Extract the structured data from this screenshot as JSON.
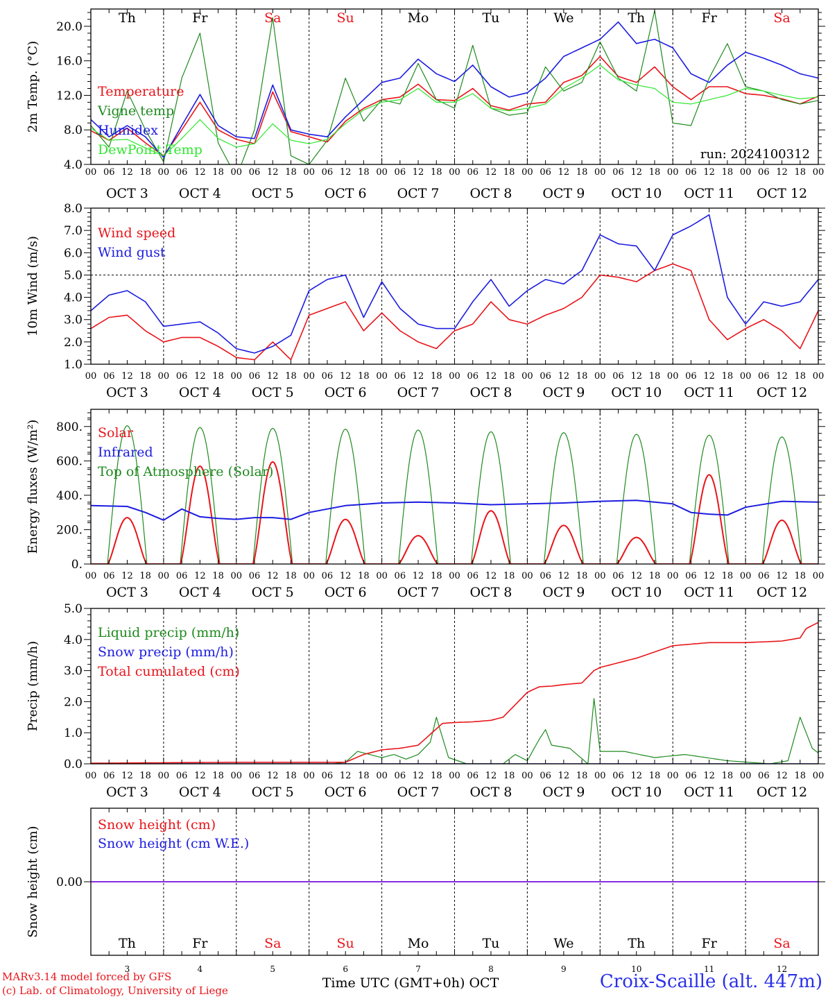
{
  "meta": {
    "credit_line1": "MARv3.14 model forced by GFS",
    "credit_line2": "(c) Lab. of Climatology, University of Liege",
    "station": "Croix-Scaille (alt. 447m)",
    "run_label": "run: 2024100312",
    "x_axis_title": "Time UTC (GMT+0h) OCT",
    "hour_ticks": [
      "00",
      "06",
      "12",
      "18"
    ],
    "last_hour_tick": "00",
    "date_labels": [
      "OCT  3",
      "OCT  4",
      "OCT  5",
      "OCT  6",
      "OCT  7",
      "OCT  8",
      "OCT  9",
      "OCT 10",
      "OCT 11",
      "OCT 12"
    ],
    "day_numbers": [
      "3",
      "4",
      "5",
      "6",
      "7",
      "8",
      "9",
      "10",
      "11",
      "12"
    ],
    "weekdays": [
      "Th",
      "Fr",
      "Sa",
      "Su",
      "Mo",
      "Tu",
      "We",
      "Th",
      "Fr",
      "Sa"
    ],
    "weekend_days": [
      2,
      3,
      9
    ],
    "colors": {
      "red": "#e8141a",
      "blue": "#1c1ce0",
      "green": "#1e8a1e",
      "lightgreen": "#2ee82e",
      "purple": "#8a2be2",
      "axis": "#000000"
    }
  },
  "chart_data": [
    {
      "type": "line",
      "id": "temperature",
      "ylabel": "2m Temp. (°C)",
      "ylim": [
        4,
        22
      ],
      "yticks": [
        "4.0",
        "8.0",
        "12.0",
        "16.0",
        "20.0"
      ],
      "ytick_values": [
        4,
        8,
        12,
        16,
        20
      ],
      "weekday_header": true,
      "run_label": true,
      "grid": "vertical dashed at day boundaries",
      "legend_placement": "left",
      "x_hours": [
        0,
        6,
        12,
        18,
        24,
        30,
        36,
        42,
        48,
        54,
        60,
        66,
        72,
        78,
        84,
        90,
        96,
        102,
        108,
        114,
        120,
        126,
        132,
        138,
        144,
        150,
        156,
        162,
        168,
        174,
        180,
        186,
        192,
        198,
        204,
        210,
        216,
        222,
        228,
        234,
        240
      ],
      "series": [
        {
          "name": "Temperature",
          "color": "#e8141a",
          "values": [
            7.9,
            6.8,
            8.2,
            6.5,
            5.0,
            8.0,
            11.2,
            8.0,
            6.9,
            6.4,
            12.4,
            7.8,
            7.2,
            6.6,
            9.0,
            10.5,
            11.5,
            11.8,
            13.3,
            11.5,
            11.4,
            12.8,
            10.8,
            10.3,
            11.0,
            11.2,
            13.5,
            14.3,
            16.5,
            14.2,
            13.5,
            15.3,
            13.0,
            11.5,
            13.0,
            13.0,
            12.2,
            12.0,
            11.6,
            11.0,
            11.9
          ]
        },
        {
          "name": "Vigne temp",
          "color": "#1e8a1e",
          "values": [
            8.5,
            6.0,
            12.5,
            8.0,
            4.3,
            14.0,
            19.2,
            6.5,
            2.5,
            8.0,
            21.0,
            5.0,
            4.0,
            6.8,
            14.0,
            9.0,
            11.5,
            11.0,
            15.7,
            11.5,
            10.5,
            17.8,
            10.5,
            9.7,
            10.0,
            15.3,
            12.5,
            13.5,
            18.2,
            14.0,
            12.5,
            21.8,
            8.8,
            8.5,
            14.0,
            18.0,
            13.0,
            12.5,
            11.5,
            11.0,
            11.4
          ]
        },
        {
          "name": "Humidex",
          "color": "#1c1ce0",
          "values": [
            9.2,
            7.2,
            8.5,
            7.2,
            4.8,
            8.5,
            12.1,
            8.5,
            7.2,
            7.0,
            13.2,
            8.0,
            7.5,
            7.2,
            9.5,
            11.5,
            13.5,
            14.0,
            16.2,
            14.5,
            13.6,
            15.5,
            13.0,
            11.8,
            12.3,
            14.0,
            16.5,
            17.5,
            18.5,
            20.5,
            18.0,
            18.5,
            17.5,
            14.5,
            13.5,
            15.5,
            17.0,
            16.3,
            15.5,
            14.5,
            14.0
          ]
        },
        {
          "name": "DewPoint Temp",
          "color": "#2ee82e",
          "values": [
            8.2,
            6.8,
            6.9,
            5.9,
            5.0,
            7.0,
            9.2,
            7.0,
            6.0,
            6.4,
            8.7,
            6.8,
            6.4,
            6.9,
            8.7,
            10.3,
            11.2,
            11.5,
            12.8,
            11.2,
            11.2,
            12.2,
            10.5,
            10.2,
            10.5,
            11.0,
            12.8,
            14.0,
            15.5,
            13.8,
            13.2,
            12.8,
            11.2,
            11.0,
            11.5,
            12.0,
            12.8,
            12.5,
            12.0,
            11.6,
            11.8
          ]
        }
      ]
    },
    {
      "type": "line",
      "id": "wind",
      "ylabel": "10m Wind (m/s)",
      "ylim": [
        1,
        8
      ],
      "yticks": [
        "1.0",
        "2.0",
        "3.0",
        "4.0",
        "5.0",
        "6.0",
        "7.0",
        "8.0"
      ],
      "ytick_values": [
        1,
        2,
        3,
        4,
        5,
        6,
        7,
        8
      ],
      "reference_line": 5,
      "legend_placement": "left",
      "x_hours": [
        0,
        6,
        12,
        18,
        24,
        30,
        36,
        42,
        48,
        54,
        60,
        66,
        72,
        78,
        84,
        90,
        96,
        102,
        108,
        114,
        120,
        126,
        132,
        138,
        144,
        150,
        156,
        162,
        168,
        174,
        180,
        186,
        192,
        198,
        204,
        210,
        216,
        222,
        228,
        234,
        240
      ],
      "series": [
        {
          "name": "Wind speed",
          "color": "#e8141a",
          "values": [
            2.6,
            3.1,
            3.2,
            2.5,
            2.0,
            2.2,
            2.2,
            1.8,
            1.3,
            1.2,
            2.0,
            1.2,
            3.2,
            3.5,
            3.8,
            2.5,
            3.3,
            2.5,
            2.0,
            1.7,
            2.5,
            2.8,
            3.8,
            3.0,
            2.8,
            3.2,
            3.5,
            4.0,
            5.0,
            4.9,
            4.7,
            5.2,
            5.5,
            5.2,
            3.0,
            2.1,
            2.6,
            3.0,
            2.5,
            1.7,
            3.4
          ]
        },
        {
          "name": "Wind gust",
          "color": "#1c1ce0",
          "values": [
            3.4,
            4.1,
            4.3,
            3.8,
            2.7,
            2.8,
            2.9,
            2.4,
            1.7,
            1.5,
            1.8,
            2.3,
            4.3,
            4.8,
            5.0,
            3.1,
            4.7,
            3.5,
            2.8,
            2.6,
            2.6,
            3.8,
            4.8,
            3.6,
            4.3,
            4.8,
            4.6,
            5.2,
            6.8,
            6.4,
            6.3,
            5.2,
            6.8,
            7.2,
            7.7,
            4.0,
            2.8,
            3.8,
            3.6,
            3.8,
            4.8
          ]
        }
      ]
    },
    {
      "type": "line",
      "id": "energy",
      "ylabel": "Energy fluxes (W/m²)",
      "ylim": [
        0,
        900
      ],
      "yticks": [
        "0.",
        "200.",
        "400.",
        "600.",
        "800."
      ],
      "ytick_values": [
        0,
        200,
        400,
        600,
        800
      ],
      "legend_placement": "left",
      "daily_peaks": {
        "top_of_atmosphere": [
          805,
          795,
          790,
          785,
          780,
          770,
          765,
          755,
          750,
          740
        ],
        "solar": [
          270,
          570,
          595,
          260,
          165,
          310,
          225,
          155,
          520,
          255
        ]
      },
      "series": [
        {
          "name": "Solar",
          "color": "#e8141a"
        },
        {
          "name": "Infrared",
          "color": "#1c1ce0",
          "x_hours": [
            0,
            12,
            18,
            24,
            30,
            36,
            42,
            48,
            54,
            60,
            66,
            72,
            84,
            96,
            108,
            120,
            132,
            144,
            156,
            168,
            180,
            192,
            198,
            204,
            210,
            216,
            228,
            240
          ],
          "values": [
            340,
            335,
            300,
            255,
            320,
            275,
            265,
            260,
            270,
            270,
            260,
            300,
            340,
            355,
            360,
            355,
            345,
            350,
            355,
            365,
            370,
            350,
            300,
            290,
            285,
            330,
            365,
            360
          ]
        },
        {
          "name": "Top of Atmosphere (Solar)",
          "color": "#1e8a1e"
        }
      ]
    },
    {
      "type": "line",
      "id": "precip",
      "ylabel": "Precip (mm/h)",
      "ylim": [
        0,
        5
      ],
      "yticks": [
        "0.0",
        "1.0",
        "2.0",
        "3.0",
        "4.0",
        "5.0"
      ],
      "ytick_values": [
        0,
        1,
        2,
        3,
        4,
        5
      ],
      "legend_placement": "left",
      "series": [
        {
          "name": "Liquid precip (mm/h)",
          "color": "#1e8a1e",
          "x_hours": [
            0,
            48,
            80,
            84,
            88,
            96,
            100,
            104,
            108,
            112,
            114,
            118,
            124,
            136,
            140,
            144,
            148,
            150,
            152,
            158,
            164,
            166,
            168,
            176,
            186,
            196,
            210,
            224,
            230,
            234,
            238,
            240
          ],
          "values": [
            0,
            0,
            0,
            0.05,
            0.4,
            0.2,
            0.3,
            0.15,
            0.3,
            0.7,
            1.5,
            0.2,
            0,
            0,
            0.3,
            0.1,
            0.8,
            1.1,
            0.6,
            0.5,
            0,
            2.1,
            0.4,
            0.4,
            0.2,
            0.3,
            0.1,
            0,
            0.1,
            1.5,
            0.5,
            0.35
          ]
        },
        {
          "name": "Snow precip (mm/h)",
          "color": "#1c1ce0",
          "x_hours": [
            0,
            240
          ],
          "values": [
            0,
            0
          ]
        },
        {
          "name": "Total cumulated (cm)",
          "color": "#e8141a",
          "x_hours": [
            0,
            48,
            84,
            90,
            96,
            102,
            108,
            112,
            116,
            120,
            126,
            132,
            136,
            140,
            144,
            148,
            152,
            156,
            162,
            166,
            168,
            172,
            180,
            192,
            204,
            216,
            228,
            234,
            236,
            240
          ],
          "values": [
            0.02,
            0.05,
            0.05,
            0.3,
            0.45,
            0.5,
            0.6,
            0.95,
            1.3,
            1.33,
            1.35,
            1.4,
            1.5,
            1.9,
            2.3,
            2.48,
            2.5,
            2.55,
            2.6,
            3.0,
            3.1,
            3.2,
            3.4,
            3.8,
            3.9,
            3.9,
            3.95,
            4.05,
            4.35,
            4.55
          ]
        }
      ]
    },
    {
      "type": "line",
      "id": "snow",
      "ylabel": "Snow height (cm)",
      "ylim": [
        -1,
        1
      ],
      "yticks": [
        "0.00"
      ],
      "ytick_values": [
        0
      ],
      "legend_placement": "left",
      "weekday_footer": true,
      "series": [
        {
          "name": "Snow height (cm)",
          "color": "#e8141a",
          "x_hours": [
            0,
            240
          ],
          "values": [
            0,
            0
          ]
        },
        {
          "name": "Snow height (cm W.E.)",
          "color": "#1c1ce0",
          "x_hours": [
            0,
            240
          ],
          "values": [
            0,
            0
          ]
        }
      ]
    }
  ]
}
